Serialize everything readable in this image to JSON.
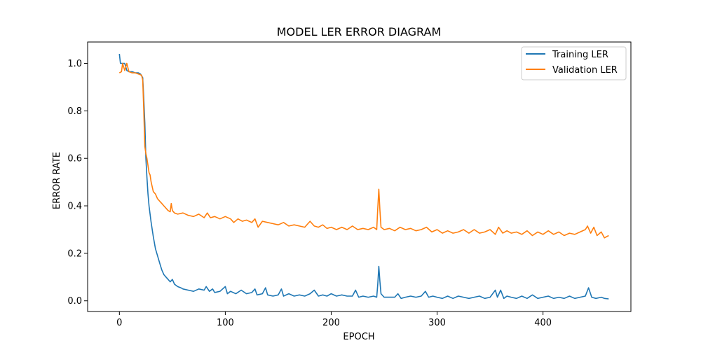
{
  "chart_data": {
    "type": "line",
    "title": "MODEL LER ERROR DIAGRAM",
    "xlabel": "EPOCH",
    "ylabel": "ERROR RATE",
    "xlim": [
      -30,
      483
    ],
    "ylim": [
      -0.045,
      1.09
    ],
    "xticks": [
      0,
      100,
      200,
      300,
      400
    ],
    "yticks": [
      0.0,
      0.2,
      0.4,
      0.6,
      0.8,
      1.0
    ],
    "ytick_labels": [
      "0.0",
      "0.2",
      "0.4",
      "0.6",
      "0.8",
      "1.0"
    ],
    "grid": false,
    "legend_position": "top-right",
    "series": [
      {
        "name": "Training LER",
        "color": "#1f77b4",
        "points": [
          [
            0,
            1.04
          ],
          [
            1,
            1.0
          ],
          [
            3,
            1.0
          ],
          [
            5,
            1.0
          ],
          [
            7,
            0.97
          ],
          [
            9,
            0.965
          ],
          [
            12,
            0.965
          ],
          [
            15,
            0.96
          ],
          [
            18,
            0.96
          ],
          [
            20,
            0.955
          ],
          [
            22,
            0.94
          ],
          [
            23,
            0.85
          ],
          [
            24,
            0.75
          ],
          [
            25,
            0.6
          ],
          [
            26,
            0.52
          ],
          [
            27,
            0.45
          ],
          [
            28,
            0.4
          ],
          [
            30,
            0.33
          ],
          [
            32,
            0.27
          ],
          [
            34,
            0.22
          ],
          [
            36,
            0.19
          ],
          [
            38,
            0.16
          ],
          [
            40,
            0.13
          ],
          [
            42,
            0.11
          ],
          [
            44,
            0.1
          ],
          [
            46,
            0.09
          ],
          [
            48,
            0.08
          ],
          [
            50,
            0.09
          ],
          [
            52,
            0.07
          ],
          [
            55,
            0.06
          ],
          [
            58,
            0.055
          ],
          [
            60,
            0.05
          ],
          [
            65,
            0.045
          ],
          [
            70,
            0.04
          ],
          [
            75,
            0.05
          ],
          [
            80,
            0.045
          ],
          [
            82,
            0.06
          ],
          [
            85,
            0.04
          ],
          [
            88,
            0.05
          ],
          [
            90,
            0.035
          ],
          [
            95,
            0.04
          ],
          [
            100,
            0.06
          ],
          [
            102,
            0.03
          ],
          [
            105,
            0.04
          ],
          [
            110,
            0.03
          ],
          [
            115,
            0.045
          ],
          [
            120,
            0.03
          ],
          [
            125,
            0.035
          ],
          [
            128,
            0.05
          ],
          [
            130,
            0.025
          ],
          [
            135,
            0.03
          ],
          [
            138,
            0.055
          ],
          [
            140,
            0.025
          ],
          [
            145,
            0.02
          ],
          [
            150,
            0.025
          ],
          [
            153,
            0.05
          ],
          [
            155,
            0.02
          ],
          [
            160,
            0.03
          ],
          [
            165,
            0.02
          ],
          [
            170,
            0.025
          ],
          [
            175,
            0.02
          ],
          [
            180,
            0.03
          ],
          [
            184,
            0.045
          ],
          [
            188,
            0.02
          ],
          [
            192,
            0.025
          ],
          [
            196,
            0.02
          ],
          [
            200,
            0.03
          ],
          [
            205,
            0.02
          ],
          [
            210,
            0.025
          ],
          [
            215,
            0.02
          ],
          [
            220,
            0.02
          ],
          [
            223,
            0.045
          ],
          [
            226,
            0.015
          ],
          [
            230,
            0.02
          ],
          [
            235,
            0.015
          ],
          [
            240,
            0.02
          ],
          [
            243,
            0.015
          ],
          [
            244,
            0.07
          ],
          [
            245,
            0.145
          ],
          [
            246,
            0.08
          ],
          [
            247,
            0.03
          ],
          [
            250,
            0.015
          ],
          [
            255,
            0.015
          ],
          [
            260,
            0.015
          ],
          [
            263,
            0.03
          ],
          [
            266,
            0.01
          ],
          [
            270,
            0.015
          ],
          [
            275,
            0.02
          ],
          [
            280,
            0.015
          ],
          [
            285,
            0.02
          ],
          [
            289,
            0.04
          ],
          [
            292,
            0.015
          ],
          [
            296,
            0.02
          ],
          [
            300,
            0.015
          ],
          [
            305,
            0.01
          ],
          [
            310,
            0.02
          ],
          [
            315,
            0.01
          ],
          [
            320,
            0.02
          ],
          [
            325,
            0.015
          ],
          [
            330,
            0.01
          ],
          [
            335,
            0.015
          ],
          [
            340,
            0.02
          ],
          [
            345,
            0.01
          ],
          [
            350,
            0.015
          ],
          [
            355,
            0.045
          ],
          [
            357,
            0.015
          ],
          [
            360,
            0.045
          ],
          [
            363,
            0.01
          ],
          [
            366,
            0.02
          ],
          [
            370,
            0.015
          ],
          [
            375,
            0.01
          ],
          [
            380,
            0.02
          ],
          [
            385,
            0.01
          ],
          [
            390,
            0.025
          ],
          [
            395,
            0.01
          ],
          [
            400,
            0.015
          ],
          [
            405,
            0.02
          ],
          [
            410,
            0.01
          ],
          [
            415,
            0.015
          ],
          [
            420,
            0.01
          ],
          [
            425,
            0.02
          ],
          [
            430,
            0.01
          ],
          [
            435,
            0.015
          ],
          [
            440,
            0.02
          ],
          [
            443,
            0.055
          ],
          [
            446,
            0.015
          ],
          [
            450,
            0.01
          ],
          [
            455,
            0.015
          ],
          [
            458,
            0.01
          ],
          [
            462,
            0.008
          ]
        ]
      },
      {
        "name": "Validation LER",
        "color": "#ff7f0e",
        "points": [
          [
            0,
            0.96
          ],
          [
            2,
            0.965
          ],
          [
            3,
            1.0
          ],
          [
            5,
            0.97
          ],
          [
            7,
            1.0
          ],
          [
            9,
            0.965
          ],
          [
            12,
            0.96
          ],
          [
            15,
            0.96
          ],
          [
            18,
            0.955
          ],
          [
            21,
            0.95
          ],
          [
            22,
            0.93
          ],
          [
            23,
            0.8
          ],
          [
            24,
            0.65
          ],
          [
            25,
            0.62
          ],
          [
            26,
            0.6
          ],
          [
            27,
            0.57
          ],
          [
            28,
            0.54
          ],
          [
            29,
            0.53
          ],
          [
            30,
            0.5
          ],
          [
            32,
            0.46
          ],
          [
            34,
            0.45
          ],
          [
            36,
            0.43
          ],
          [
            38,
            0.42
          ],
          [
            40,
            0.41
          ],
          [
            42,
            0.4
          ],
          [
            44,
            0.39
          ],
          [
            46,
            0.38
          ],
          [
            48,
            0.375
          ],
          [
            49,
            0.41
          ],
          [
            50,
            0.38
          ],
          [
            52,
            0.37
          ],
          [
            55,
            0.365
          ],
          [
            60,
            0.37
          ],
          [
            65,
            0.36
          ],
          [
            70,
            0.355
          ],
          [
            75,
            0.365
          ],
          [
            80,
            0.35
          ],
          [
            83,
            0.37
          ],
          [
            86,
            0.35
          ],
          [
            90,
            0.355
          ],
          [
            95,
            0.345
          ],
          [
            100,
            0.355
          ],
          [
            105,
            0.345
          ],
          [
            108,
            0.33
          ],
          [
            112,
            0.345
          ],
          [
            116,
            0.335
          ],
          [
            120,
            0.34
          ],
          [
            125,
            0.33
          ],
          [
            128,
            0.345
          ],
          [
            131,
            0.31
          ],
          [
            135,
            0.335
          ],
          [
            140,
            0.33
          ],
          [
            145,
            0.325
          ],
          [
            150,
            0.32
          ],
          [
            155,
            0.33
          ],
          [
            160,
            0.315
          ],
          [
            165,
            0.32
          ],
          [
            170,
            0.315
          ],
          [
            175,
            0.31
          ],
          [
            180,
            0.335
          ],
          [
            184,
            0.315
          ],
          [
            188,
            0.31
          ],
          [
            192,
            0.32
          ],
          [
            196,
            0.305
          ],
          [
            200,
            0.31
          ],
          [
            205,
            0.3
          ],
          [
            210,
            0.31
          ],
          [
            215,
            0.3
          ],
          [
            220,
            0.315
          ],
          [
            225,
            0.3
          ],
          [
            230,
            0.305
          ],
          [
            235,
            0.3
          ],
          [
            240,
            0.31
          ],
          [
            243,
            0.3
          ],
          [
            244,
            0.39
          ],
          [
            245,
            0.47
          ],
          [
            246,
            0.38
          ],
          [
            247,
            0.31
          ],
          [
            250,
            0.3
          ],
          [
            255,
            0.305
          ],
          [
            260,
            0.295
          ],
          [
            265,
            0.31
          ],
          [
            270,
            0.3
          ],
          [
            275,
            0.305
          ],
          [
            280,
            0.295
          ],
          [
            285,
            0.3
          ],
          [
            290,
            0.31
          ],
          [
            295,
            0.29
          ],
          [
            300,
            0.3
          ],
          [
            305,
            0.285
          ],
          [
            310,
            0.295
          ],
          [
            315,
            0.285
          ],
          [
            320,
            0.29
          ],
          [
            325,
            0.3
          ],
          [
            330,
            0.285
          ],
          [
            335,
            0.3
          ],
          [
            340,
            0.285
          ],
          [
            345,
            0.29
          ],
          [
            350,
            0.3
          ],
          [
            355,
            0.28
          ],
          [
            358,
            0.31
          ],
          [
            362,
            0.285
          ],
          [
            366,
            0.295
          ],
          [
            370,
            0.285
          ],
          [
            375,
            0.29
          ],
          [
            380,
            0.28
          ],
          [
            385,
            0.295
          ],
          [
            390,
            0.275
          ],
          [
            395,
            0.29
          ],
          [
            400,
            0.28
          ],
          [
            405,
            0.295
          ],
          [
            410,
            0.28
          ],
          [
            415,
            0.29
          ],
          [
            420,
            0.275
          ],
          [
            425,
            0.285
          ],
          [
            430,
            0.28
          ],
          [
            435,
            0.29
          ],
          [
            440,
            0.3
          ],
          [
            442,
            0.315
          ],
          [
            445,
            0.285
          ],
          [
            448,
            0.31
          ],
          [
            451,
            0.275
          ],
          [
            455,
            0.29
          ],
          [
            458,
            0.265
          ],
          [
            462,
            0.275
          ]
        ]
      }
    ]
  }
}
